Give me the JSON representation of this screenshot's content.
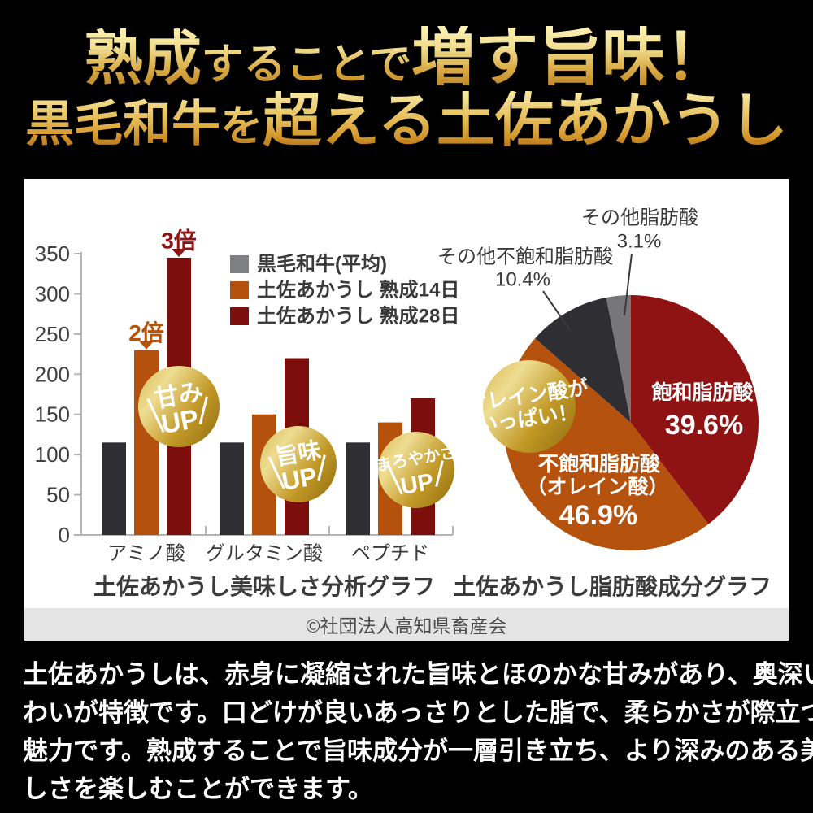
{
  "page": {
    "background": "#000000",
    "card_background": "#ffffff",
    "strip_background": "#e4e4e4"
  },
  "header": {
    "line1_segments": [
      {
        "text": "熟成"
      },
      {
        "text": "することで"
      },
      {
        "text": "増す旨味！"
      }
    ],
    "line2_segments": [
      {
        "text": "黒毛和牛"
      },
      {
        "text": "を"
      },
      {
        "text": "超える"
      },
      {
        "text": "土佐あかうし"
      }
    ],
    "gold_text_colors": {
      "light": "#fdf4b6",
      "mid": "#d9ab45",
      "deep": "#b26f15"
    }
  },
  "chart_data": [
    {
      "type": "bar",
      "title": "土佐あかうし美味しさ分析グラフ",
      "categories": [
        "アミノ酸",
        "グルタミン酸",
        "ペプチド"
      ],
      "series": [
        {
          "name": "黒毛和牛(平均)",
          "bar_color": "#2e2e33",
          "legend_color": "#7f8083",
          "values": [
            115,
            115,
            115
          ]
        },
        {
          "name": "土佐あかうし 熟成14日",
          "bar_color": "#b4510d",
          "legend_color": "#b4510d",
          "values": [
            230,
            150,
            140
          ]
        },
        {
          "name": "土佐あかうし 熟成28日",
          "bar_color": "#7c0e0b",
          "legend_color": "#7c0e0b",
          "values": [
            345,
            220,
            170
          ]
        }
      ],
      "ylim": [
        0,
        350
      ],
      "yticks": [
        0,
        50,
        100,
        150,
        200,
        250,
        300,
        350
      ],
      "grid": false,
      "legend_position": "top-right",
      "annotations": [
        {
          "text": "2倍",
          "category_index": 0,
          "series_index": 1,
          "color": "#b4510d"
        },
        {
          "text": "3倍",
          "category_index": 0,
          "series_index": 2,
          "color": "#8e1312"
        }
      ],
      "badges": [
        {
          "lines": [
            "甘み",
            "UP"
          ]
        },
        {
          "lines": [
            "旨味",
            "UP"
          ]
        },
        {
          "lines": [
            "まろやかさ",
            "UP"
          ]
        }
      ]
    },
    {
      "type": "pie",
      "title": "土佐あかうし脂肪酸成分グラフ",
      "start_angle_deg": 0,
      "direction": "clockwise",
      "slices": [
        {
          "label": "飽和脂肪酸",
          "label_lines": [
            "飽和脂肪酸"
          ],
          "value": 39.6,
          "pct_label": "39.6%",
          "color": "#8e1312",
          "label_placement": "inside"
        },
        {
          "label": "不飽和脂肪酸（オレイン酸）",
          "label_lines": [
            "不飽和脂肪酸",
            "（オレイン酸）"
          ],
          "value": 46.9,
          "pct_label": "46.9%",
          "color": "#b5520e",
          "label_placement": "inside"
        },
        {
          "label": "その他不飽和脂肪酸",
          "label_lines": [
            "その他不飽和脂肪酸"
          ],
          "value": 10.4,
          "pct_label": "10.4%",
          "color": "#2e2e33",
          "label_placement": "outside"
        },
        {
          "label": "その他脂肪酸",
          "label_lines": [
            "その他脂肪酸"
          ],
          "value": 3.1,
          "pct_label": "3.1%",
          "color": "#77777a",
          "label_placement": "outside"
        }
      ],
      "badge": {
        "lines": [
          "オレイン酸が",
          "いっぱい！"
        ]
      }
    }
  ],
  "badge_gold": {
    "g0": "#d7b84f",
    "g1": "#eedd92",
    "g2": "#c39a28",
    "g3": "#8e6b0d"
  },
  "footer_strip": {
    "copyright": "©社団法人高知県畜産会"
  },
  "body": {
    "lines": [
      "土佐あかうしは、赤身に凝縮された旨味とほのかな甘みがあり、奥深い味",
      "わいが特徴です。口どけが良いあっさりとした脂で、柔らかさが際立つのも",
      "魅力です。熟成することで旨味成分が一層引き立ち、より深みのある美味",
      "しさを楽しむことができます。"
    ]
  }
}
